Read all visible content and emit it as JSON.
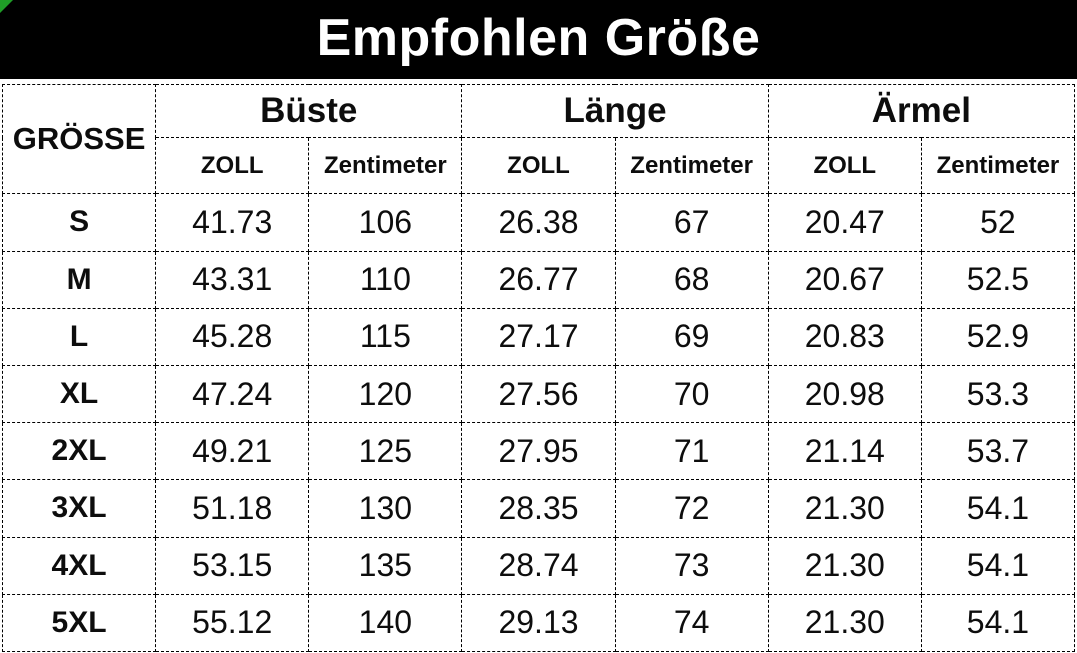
{
  "colors": {
    "banner_background": "#000000",
    "banner_text": "#ffffff",
    "table_border": "#000000",
    "cell_text": "#0d0d0d",
    "corner_marker_green": "#1f9d27"
  },
  "chart_data": {
    "type": "table",
    "title": "Empfohlen Größe",
    "row_header": "GRÖSSE",
    "groups": [
      {
        "label": "Büste"
      },
      {
        "label": "Länge"
      },
      {
        "label": "Ärmel"
      }
    ],
    "unit_inch": "ZOLL",
    "unit_cm": "Zentimeter",
    "rows": [
      {
        "size": "S",
        "cells": [
          "41.73",
          "106",
          "26.38",
          "67",
          "20.47",
          "52"
        ]
      },
      {
        "size": "M",
        "cells": [
          "43.31",
          "110",
          "26.77",
          "68",
          "20.67",
          "52.5"
        ]
      },
      {
        "size": "L",
        "cells": [
          "45.28",
          "115",
          "27.17",
          "69",
          "20.83",
          "52.9"
        ]
      },
      {
        "size": "XL",
        "cells": [
          "47.24",
          "120",
          "27.56",
          "70",
          "20.98",
          "53.3"
        ]
      },
      {
        "size": "2XL",
        "cells": [
          "49.21",
          "125",
          "27.95",
          "71",
          "21.14",
          "53.7"
        ]
      },
      {
        "size": "3XL",
        "cells": [
          "51.18",
          "130",
          "28.35",
          "72",
          "21.30",
          "54.1"
        ]
      },
      {
        "size": "4XL",
        "cells": [
          "53.15",
          "135",
          "28.74",
          "73",
          "21.30",
          "54.1"
        ]
      },
      {
        "size": "5XL",
        "cells": [
          "55.12",
          "140",
          "29.13",
          "74",
          "21.30",
          "54.1"
        ]
      }
    ]
  }
}
